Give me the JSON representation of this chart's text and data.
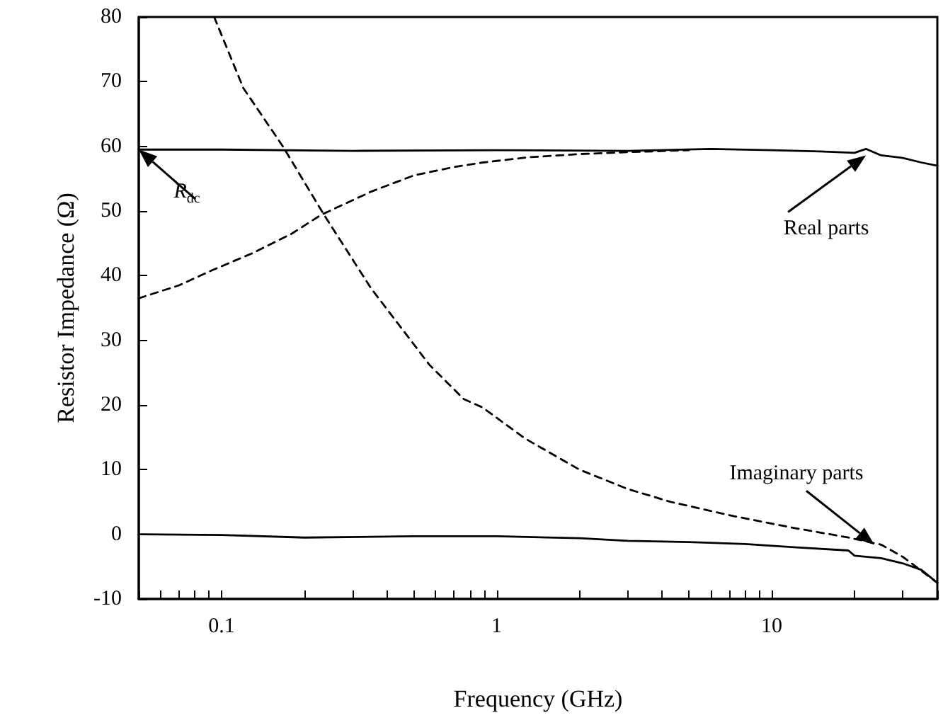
{
  "chart_data": {
    "type": "line",
    "xlabel": "Frequency (GHz)",
    "ylabel": "Resistor Impedance (Ω)",
    "log": "x",
    "xlim": [
      0.05,
      40
    ],
    "ylim": [
      -10,
      80
    ],
    "xticks": [
      {
        "value": 0.05,
        "label": null
      },
      {
        "value": 0.06,
        "label": null
      },
      {
        "value": 0.07,
        "label": null
      },
      {
        "value": 0.08,
        "label": null
      },
      {
        "value": 0.09,
        "label": null
      },
      0.1,
      {
        "value": 0.2,
        "label": null
      },
      {
        "value": 0.3,
        "label": null
      },
      {
        "value": 0.4,
        "label": null
      },
      {
        "value": 0.5,
        "label": null
      },
      {
        "value": 0.6,
        "label": null
      },
      {
        "value": 0.7,
        "label": null
      },
      {
        "value": 0.8,
        "label": null
      },
      {
        "value": 0.9,
        "label": null
      },
      1,
      {
        "value": 2,
        "label": null
      },
      {
        "value": 3,
        "label": null
      },
      {
        "value": 4,
        "label": null
      },
      {
        "value": 5,
        "label": null
      },
      {
        "value": 6,
        "label": null
      },
      {
        "value": 7,
        "label": null
      },
      {
        "value": 8,
        "label": null
      },
      {
        "value": 9,
        "label": null
      },
      10,
      {
        "value": 20,
        "label": null
      },
      {
        "value": 30,
        "label": null
      },
      {
        "value": 40,
        "label": null
      }
    ],
    "yticks": [
      -10,
      0,
      10,
      20,
      30,
      40,
      50,
      60,
      70,
      80
    ],
    "grid": false,
    "marker": "none",
    "series": [
      {
        "color": "#000000",
        "line_style": "solid",
        "x": [
          0.05,
          0.1,
          0.3,
          1,
          3,
          6,
          10,
          15,
          20,
          22,
          25,
          30,
          35,
          40
        ],
        "values": [
          59.5,
          59.5,
          59.3,
          59.4,
          59.3,
          59.6,
          59.4,
          59.2,
          59.0,
          59.6,
          58.6,
          58.2,
          57.5,
          57.0
        ]
      },
      {
        "color": "#000000",
        "line_style": "dashed",
        "x": [
          0.05,
          0.07,
          0.092,
          0.13,
          0.18,
          0.23,
          0.35,
          0.5,
          0.7,
          0.89,
          1.3,
          2,
          3,
          5
        ],
        "values": [
          36.5,
          38.5,
          40.8,
          43.5,
          46.5,
          49.4,
          53,
          55.5,
          56.8,
          57.5,
          58.3,
          58.8,
          59.1,
          59.4
        ]
      },
      {
        "color": "#000000",
        "line_style": "dashed",
        "x": [
          0.094,
          0.12,
          0.167,
          0.235,
          0.35,
          0.57,
          0.76,
          0.89,
          1.27,
          2,
          3,
          4.3,
          7.3,
          12,
          19,
          25,
          30,
          40
        ],
        "values": [
          80,
          69,
          60,
          49.5,
          38,
          26.2,
          20.9,
          19.6,
          14.8,
          10,
          7,
          5.0,
          2.8,
          1,
          -0.5,
          -1.6,
          -3.5,
          -7.5
        ]
      },
      {
        "color": "#000000",
        "line_style": "solid",
        "x": [
          0.05,
          0.1,
          0.2,
          0.5,
          1,
          2,
          3,
          5,
          8,
          12,
          19,
          20,
          25,
          30,
          35,
          40
        ],
        "values": [
          0,
          -0.1,
          -0.5,
          -0.3,
          -0.3,
          -0.6,
          -1.0,
          -1.2,
          -1.5,
          -2.0,
          -2.5,
          -3.3,
          -3.7,
          -4.5,
          -5.5,
          -7.5
        ]
      }
    ],
    "annotations": [
      {
        "text": "R$_{dc}$",
        "x": 0.05,
        "y": 59.5
      },
      {
        "text": "Real parts",
        "x": 22,
        "y": 58.6
      },
      {
        "text": "Imaginary parts",
        "x": 23.6,
        "y": -1.6
      }
    ]
  }
}
